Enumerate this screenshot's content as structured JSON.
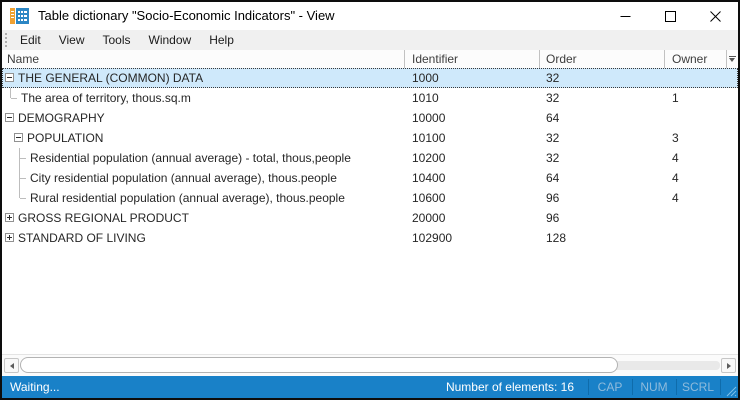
{
  "window": {
    "title": "Table dictionary \"Socio-Economic Indicators\" - View",
    "controls": {
      "minimize": "minimize",
      "maximize": "maximize",
      "close": "close"
    }
  },
  "menu": {
    "items": [
      "Edit",
      "View",
      "Tools",
      "Window",
      "Help"
    ]
  },
  "grid": {
    "columns": [
      "Name",
      "Identifier",
      "Order",
      "Owner"
    ],
    "rows": [
      {
        "name": "THE GENERAL (COMMON) DATA",
        "identifier": "1000",
        "order": "32",
        "owner": "",
        "level": 0,
        "glyph": "minus",
        "selected": true
      },
      {
        "name": "The area of territory, thous.sq.m",
        "identifier": "1010",
        "order": "32",
        "owner": "1",
        "level": 1,
        "glyph": "leaf",
        "connector": "end"
      },
      {
        "name": "DEMOGRAPHY",
        "identifier": "10000",
        "order": "64",
        "owner": "",
        "level": 0,
        "glyph": "minus"
      },
      {
        "name": "POPULATION",
        "identifier": "10100",
        "order": "32",
        "owner": "3",
        "level": 1,
        "glyph": "minus"
      },
      {
        "name": "Residential population (annual average) - total, thous,people",
        "identifier": "10200",
        "order": "32",
        "owner": "4",
        "level": 2,
        "glyph": "leaf",
        "connector": "mid"
      },
      {
        "name": "City residential population (annual average), thous.people",
        "identifier": "10400",
        "order": "64",
        "owner": "4",
        "level": 2,
        "glyph": "leaf",
        "connector": "mid"
      },
      {
        "name": "Rural residential population (annual average), thous.people",
        "identifier": "10600",
        "order": "96",
        "owner": "4",
        "level": 2,
        "glyph": "leaf",
        "connector": "end"
      },
      {
        "name": "GROSS REGIONAL PRODUCT",
        "identifier": "20000",
        "order": "96",
        "owner": "",
        "level": 0,
        "glyph": "plus"
      },
      {
        "name": "STANDARD OF LIVING",
        "identifier": "102900",
        "order": "128",
        "owner": "",
        "level": 0,
        "glyph": "plus"
      }
    ]
  },
  "statusbar": {
    "message": "Waiting...",
    "elements_count": "Number of elements: 16",
    "indicators": [
      "CAP",
      "NUM",
      "SCRL"
    ]
  },
  "icons": {
    "app": "table-dictionary-icon",
    "header_chooser": "column-chooser-icon"
  },
  "colors": {
    "statusbar_blue": "#1981c8",
    "statusbar_disabled_text": "#8fbbdc",
    "selection_blue": "#cfe9fb",
    "app_icon_orange": "#f0a132",
    "app_icon_blue": "#2b86c4"
  }
}
